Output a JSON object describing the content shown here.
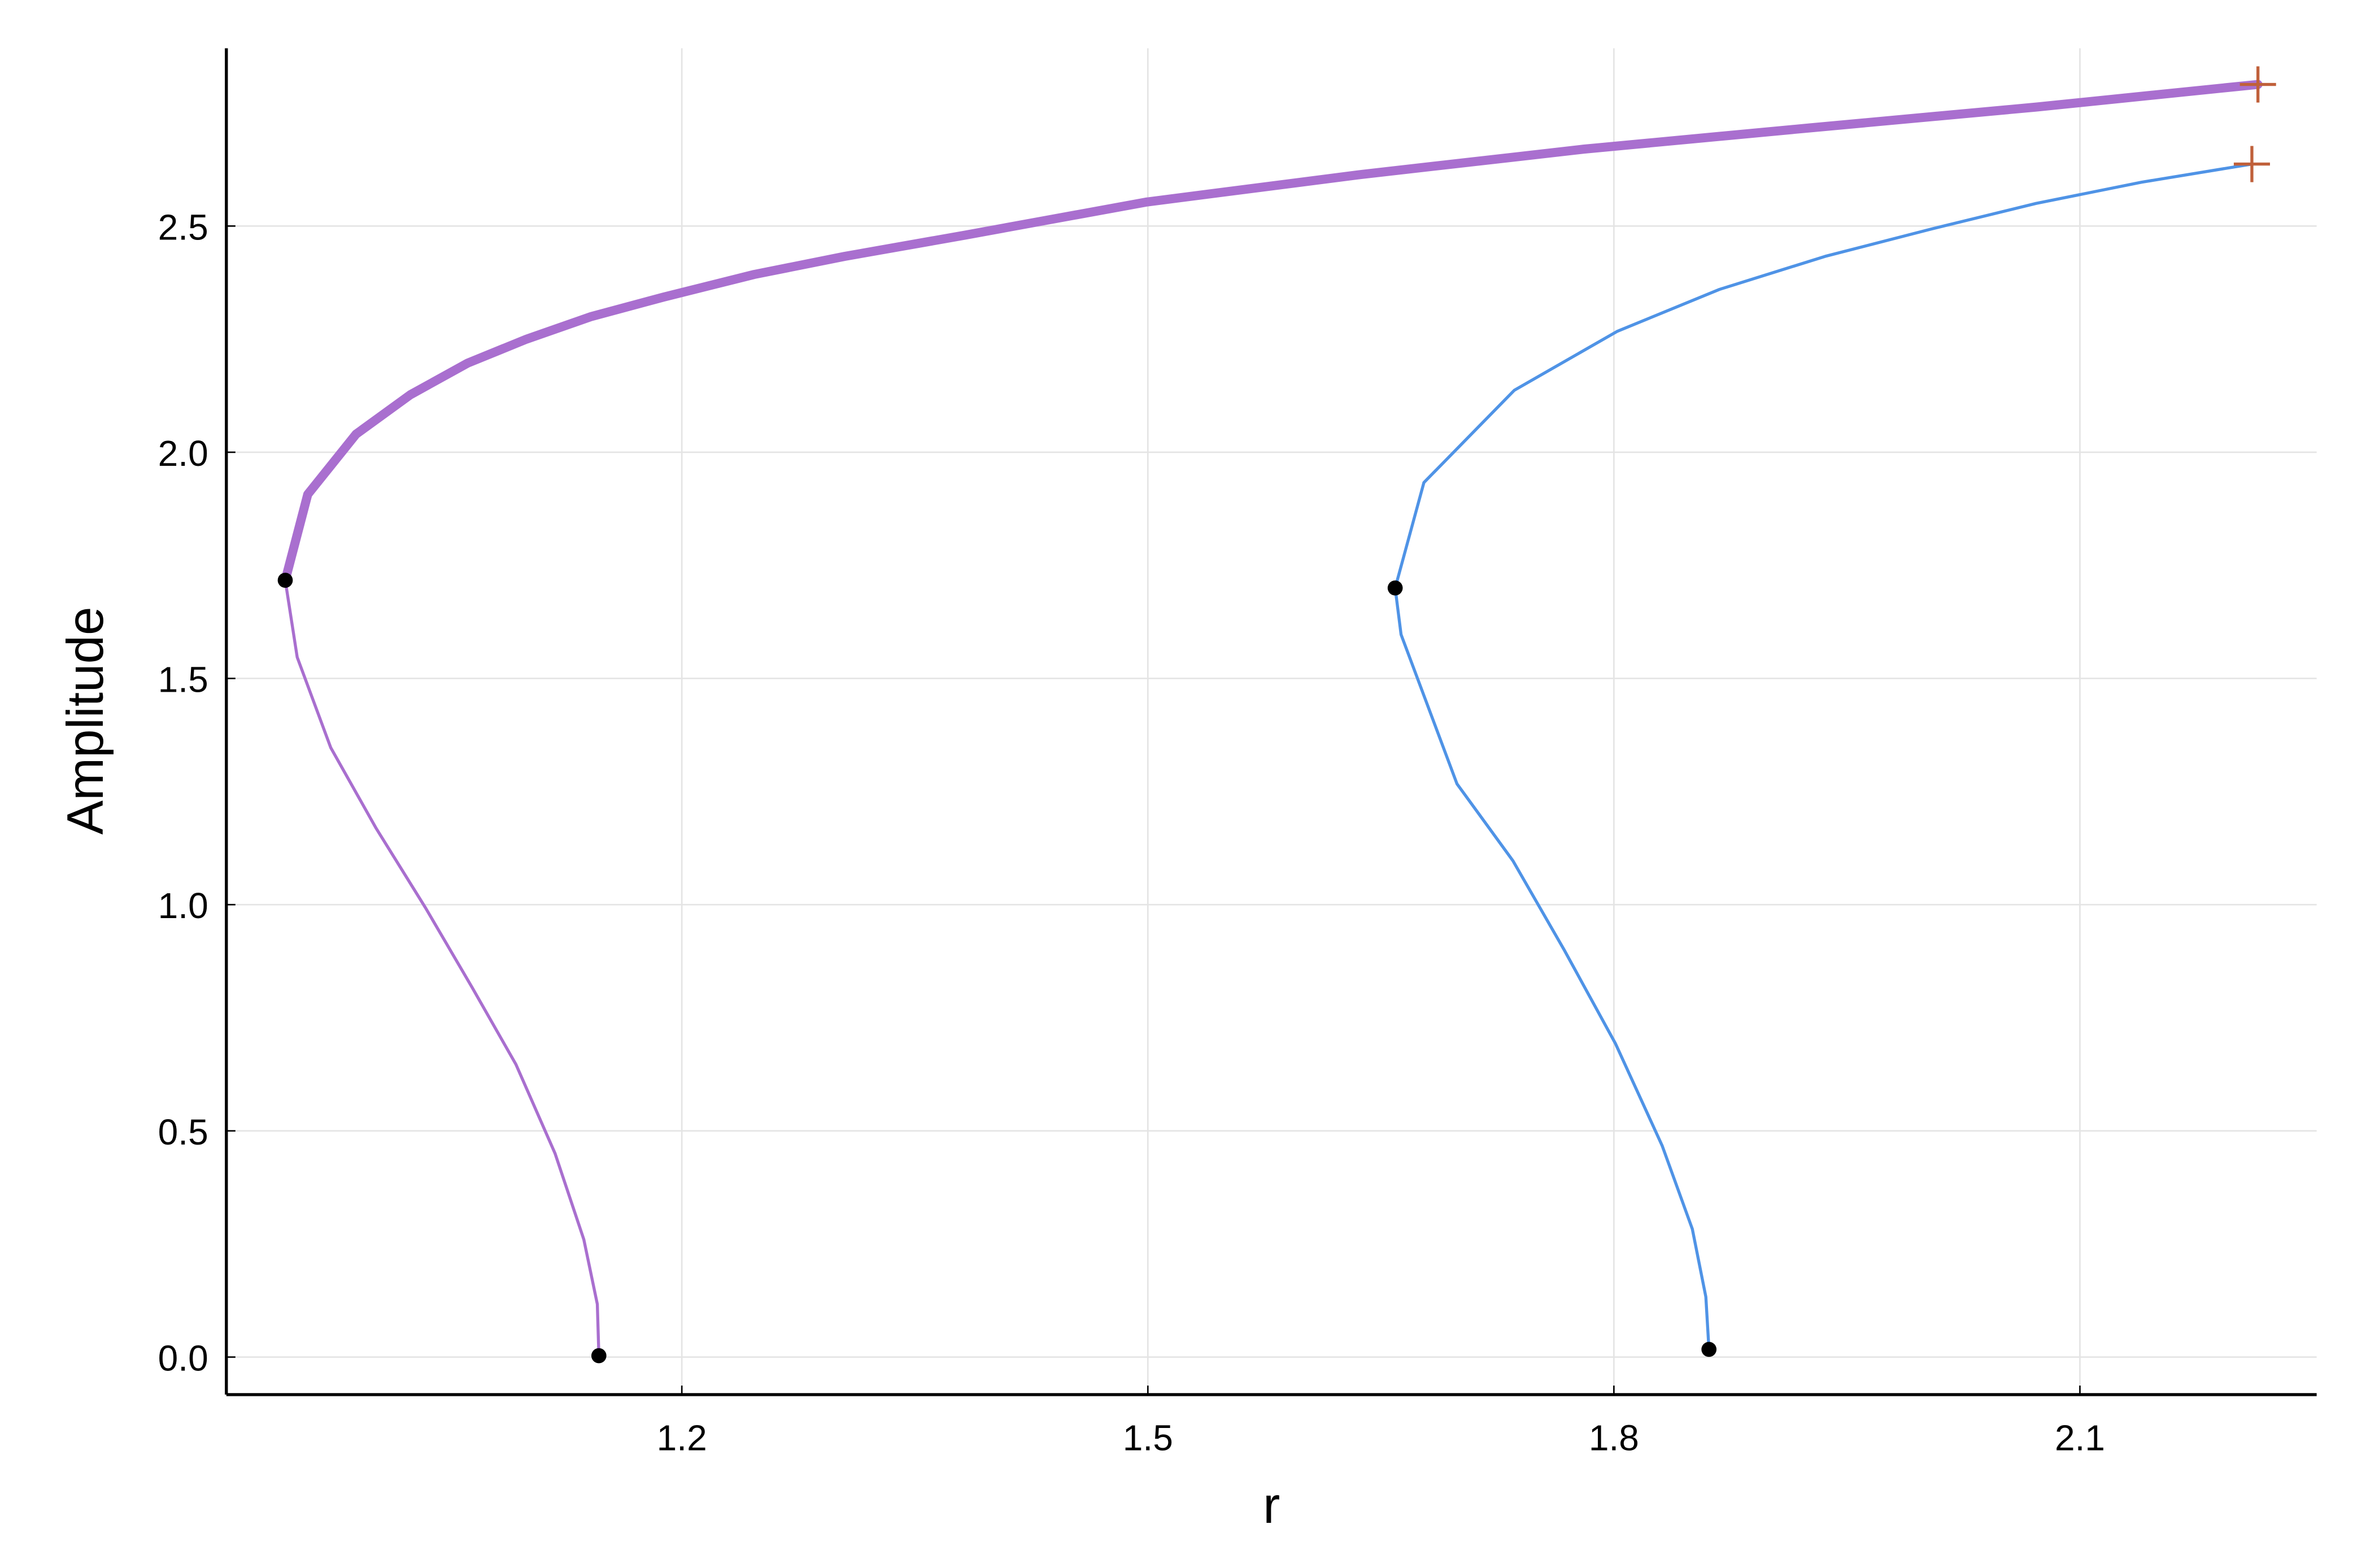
{
  "chart_data": {
    "type": "line",
    "x_label": "r",
    "y_label": "Amplitude",
    "xlim": [
      0.9068,
      2.2524
    ],
    "ylim": [
      -0.083,
      2.893
    ],
    "xticks": [
      1.2,
      1.5,
      1.8,
      2.1
    ],
    "yticks": [
      {
        "value": 0,
        "label": "0.0"
      },
      0.5,
      {
        "value": 1,
        "label": "1.0"
      },
      1.5,
      {
        "value": 2,
        "label": "2.0"
      },
      2.5
    ],
    "grid": true,
    "series": [
      {
        "color": "#a96fcf",
        "width": 6,
        "x": [
          0.9447,
          0.9592,
          0.9903,
          1.0252,
          1.0621,
          1.1,
          1.1417,
          1.1883,
          1.2466,
          1.3049,
          1.3825,
          1.499,
          1.635,
          1.7806,
          1.9262,
          2.0718,
          2.2146
        ],
        "values": [
          1.717,
          1.907,
          2.04,
          2.127,
          2.197,
          2.25,
          2.3,
          2.343,
          2.393,
          2.433,
          2.48,
          2.553,
          2.613,
          2.67,
          2.717,
          2.763,
          2.813
        ]
      },
      {
        "color": "#a96fcf",
        "width": 2,
        "x": [
          1.1466,
          1.1456,
          1.1369,
          1.1184,
          1.0932,
          1.065,
          1.035,
          1.003,
          0.974,
          0.9524,
          0.9447
        ],
        "values": [
          0.003,
          0.117,
          0.26,
          0.45,
          0.647,
          0.817,
          0.993,
          1.17,
          1.347,
          1.547,
          1.717
        ]
      },
      {
        "color": "#4f93e6",
        "width": 2,
        "x": [
          1.8612,
          1.8592,
          1.8505,
          1.8311,
          1.801,
          1.768,
          1.735,
          1.699,
          1.663,
          1.6592
        ],
        "values": [
          0.017,
          0.133,
          0.283,
          0.467,
          0.693,
          0.9,
          1.097,
          1.267,
          1.597,
          1.7
        ]
      },
      {
        "color": "#4f93e6",
        "width": 2,
        "x": [
          1.6592,
          1.6777,
          1.7359,
          1.802,
          1.868,
          1.936,
          2.0039,
          2.0718,
          2.1398,
          2.2107
        ],
        "values": [
          1.7,
          1.933,
          2.137,
          2.267,
          2.36,
          2.433,
          2.493,
          2.55,
          2.597,
          2.637
        ]
      }
    ],
    "special_points": {
      "color": "#000000",
      "x": [
        0.9447,
        1.1466,
        1.6592,
        1.8612
      ],
      "values": [
        1.717,
        0.003,
        1.7,
        0.017
      ]
    },
    "end_points": {
      "color": "#c0603a",
      "x": [
        2.2146,
        2.2107
      ],
      "values": [
        2.813,
        2.637
      ]
    }
  }
}
